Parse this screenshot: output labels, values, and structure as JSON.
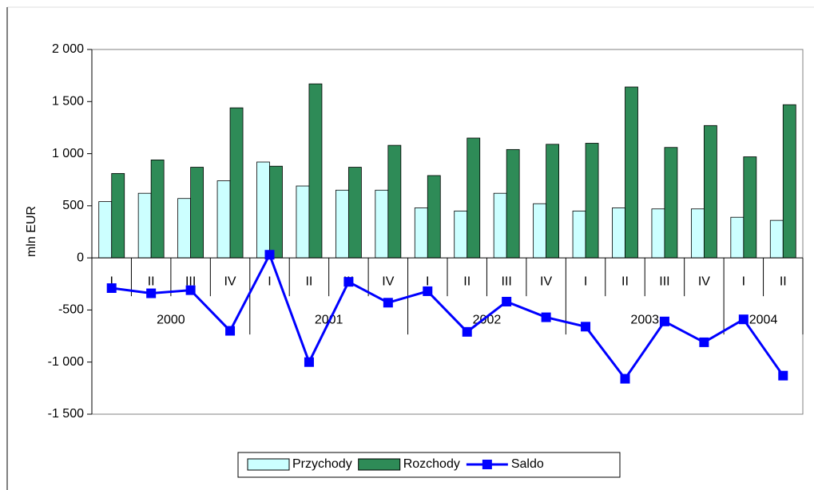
{
  "chart_data": {
    "type": "bar_line",
    "y_label": "mln EUR",
    "categories": [
      "I",
      "II",
      "III",
      "IV",
      "I",
      "II",
      "III",
      "IV",
      "I",
      "II",
      "III",
      "IV",
      "I",
      "II",
      "III",
      "IV",
      "I",
      "II"
    ],
    "year_groups": [
      "2000",
      "2001",
      "2002",
      "2003",
      "2004"
    ],
    "series": [
      {
        "name": "Przychody",
        "type": "bar",
        "color": "#ccffff",
        "values": [
          540,
          620,
          570,
          740,
          920,
          690,
          650,
          650,
          480,
          450,
          620,
          520,
          450,
          480,
          470,
          470,
          390,
          360
        ]
      },
      {
        "name": "Rozchody",
        "type": "bar",
        "color": "#2e8b57",
        "values": [
          810,
          940,
          870,
          1440,
          880,
          1670,
          870,
          1080,
          790,
          1150,
          1040,
          1090,
          1100,
          1640,
          1060,
          1270,
          970,
          1470
        ]
      },
      {
        "name": "Saldo",
        "type": "line",
        "color": "#0000ff",
        "values": [
          -290,
          -340,
          -310,
          -700,
          30,
          -1000,
          -230,
          -430,
          -320,
          -710,
          -420,
          -570,
          -660,
          -1160,
          -610,
          -810,
          -590,
          -1130
        ]
      }
    ],
    "ylim": [
      -1500,
      2000
    ],
    "yticks": [
      {
        "value": -1500,
        "label": "-1 500"
      },
      {
        "value": -1000,
        "label": "-1 000"
      },
      -500,
      0,
      500,
      {
        "value": 1000,
        "label": "1 000"
      },
      {
        "value": 1500,
        "label": "1 500"
      },
      {
        "value": 2000,
        "label": "2 000"
      }
    ],
    "legend": "bottom"
  }
}
